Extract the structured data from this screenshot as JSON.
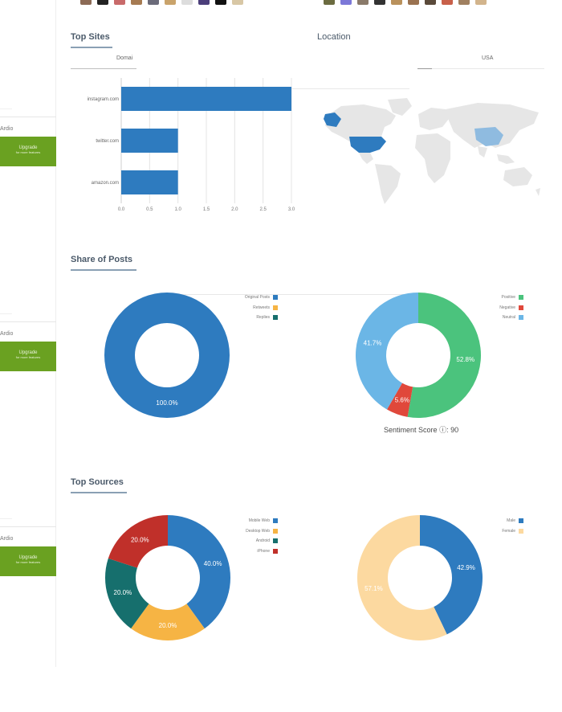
{
  "sidebar": {
    "blocks": [
      {
        "label": "Ardio",
        "upgrade_title": "Upgrade",
        "upgrade_sub": "for more features"
      },
      {
        "label": "Ardio",
        "upgrade_title": "Upgrade",
        "upgrade_sub": "for more features"
      },
      {
        "label": "Ardio",
        "upgrade_title": "Upgrade",
        "upgrade_sub": "for more features"
      }
    ]
  },
  "top_sites": {
    "title": "Top Sites",
    "tab_label": "Domai"
  },
  "location": {
    "title": "Location",
    "tab_label": "USA",
    "highlight_color": "#2e7bbf",
    "secondary_color": "#8fbbe0",
    "land_color": "#e6e6e6"
  },
  "share_of_posts": {
    "title": "Share of Posts",
    "sentiment_label": "Sentiment Score",
    "sentiment_value": "90"
  },
  "top_sources": {
    "title": "Top Sources"
  },
  "chart_data": [
    {
      "type": "bar",
      "orientation": "horizontal",
      "categories": [
        "instagram.com",
        "twitter.com",
        "amazon.com"
      ],
      "values": [
        3,
        1,
        1
      ],
      "xlim": [
        0,
        3
      ],
      "xticks": [
        "0.0",
        "0.5",
        "1.0",
        "1.5",
        "2.0",
        "2.5",
        "3.0"
      ],
      "grid": true,
      "color": "#2e7bbf"
    },
    {
      "type": "pie",
      "donut": true,
      "labels": [
        "Original Posts",
        "Retweets",
        "Replies"
      ],
      "values": [
        100.0,
        0,
        0
      ],
      "value_labels": [
        "100.0%",
        "",
        ""
      ],
      "colors": [
        "#2e7bbf",
        "#f6b444",
        "#166f6d"
      ],
      "legend": "top-right"
    },
    {
      "type": "pie",
      "donut": true,
      "labels": [
        "Positive",
        "Negative",
        "Neutral"
      ],
      "values": [
        52.8,
        5.6,
        41.7
      ],
      "value_labels": [
        "52.8%",
        "5.6%",
        "41.7%"
      ],
      "colors": [
        "#4bc37d",
        "#e0483b",
        "#6bb6e6"
      ],
      "legend": "top-right"
    },
    {
      "type": "pie",
      "donut": true,
      "labels": [
        "Mobile Web",
        "Desktop Web",
        "Android",
        "iPhone"
      ],
      "values": [
        40.0,
        20.0,
        20.0,
        20.0
      ],
      "value_labels": [
        "40.0%",
        "20.0%",
        "20.0%",
        "20.0%"
      ],
      "colors": [
        "#2e7bbf",
        "#f6b444",
        "#166f6d",
        "#c0302a"
      ],
      "legend": "top-right"
    },
    {
      "type": "pie",
      "donut": true,
      "labels": [
        "Male",
        "Female"
      ],
      "values": [
        42.9,
        57.1
      ],
      "value_labels": [
        "42.9%",
        "57.1%"
      ],
      "colors": [
        "#2e7bbf",
        "#fcd9a0"
      ],
      "legend": "top-right"
    }
  ]
}
